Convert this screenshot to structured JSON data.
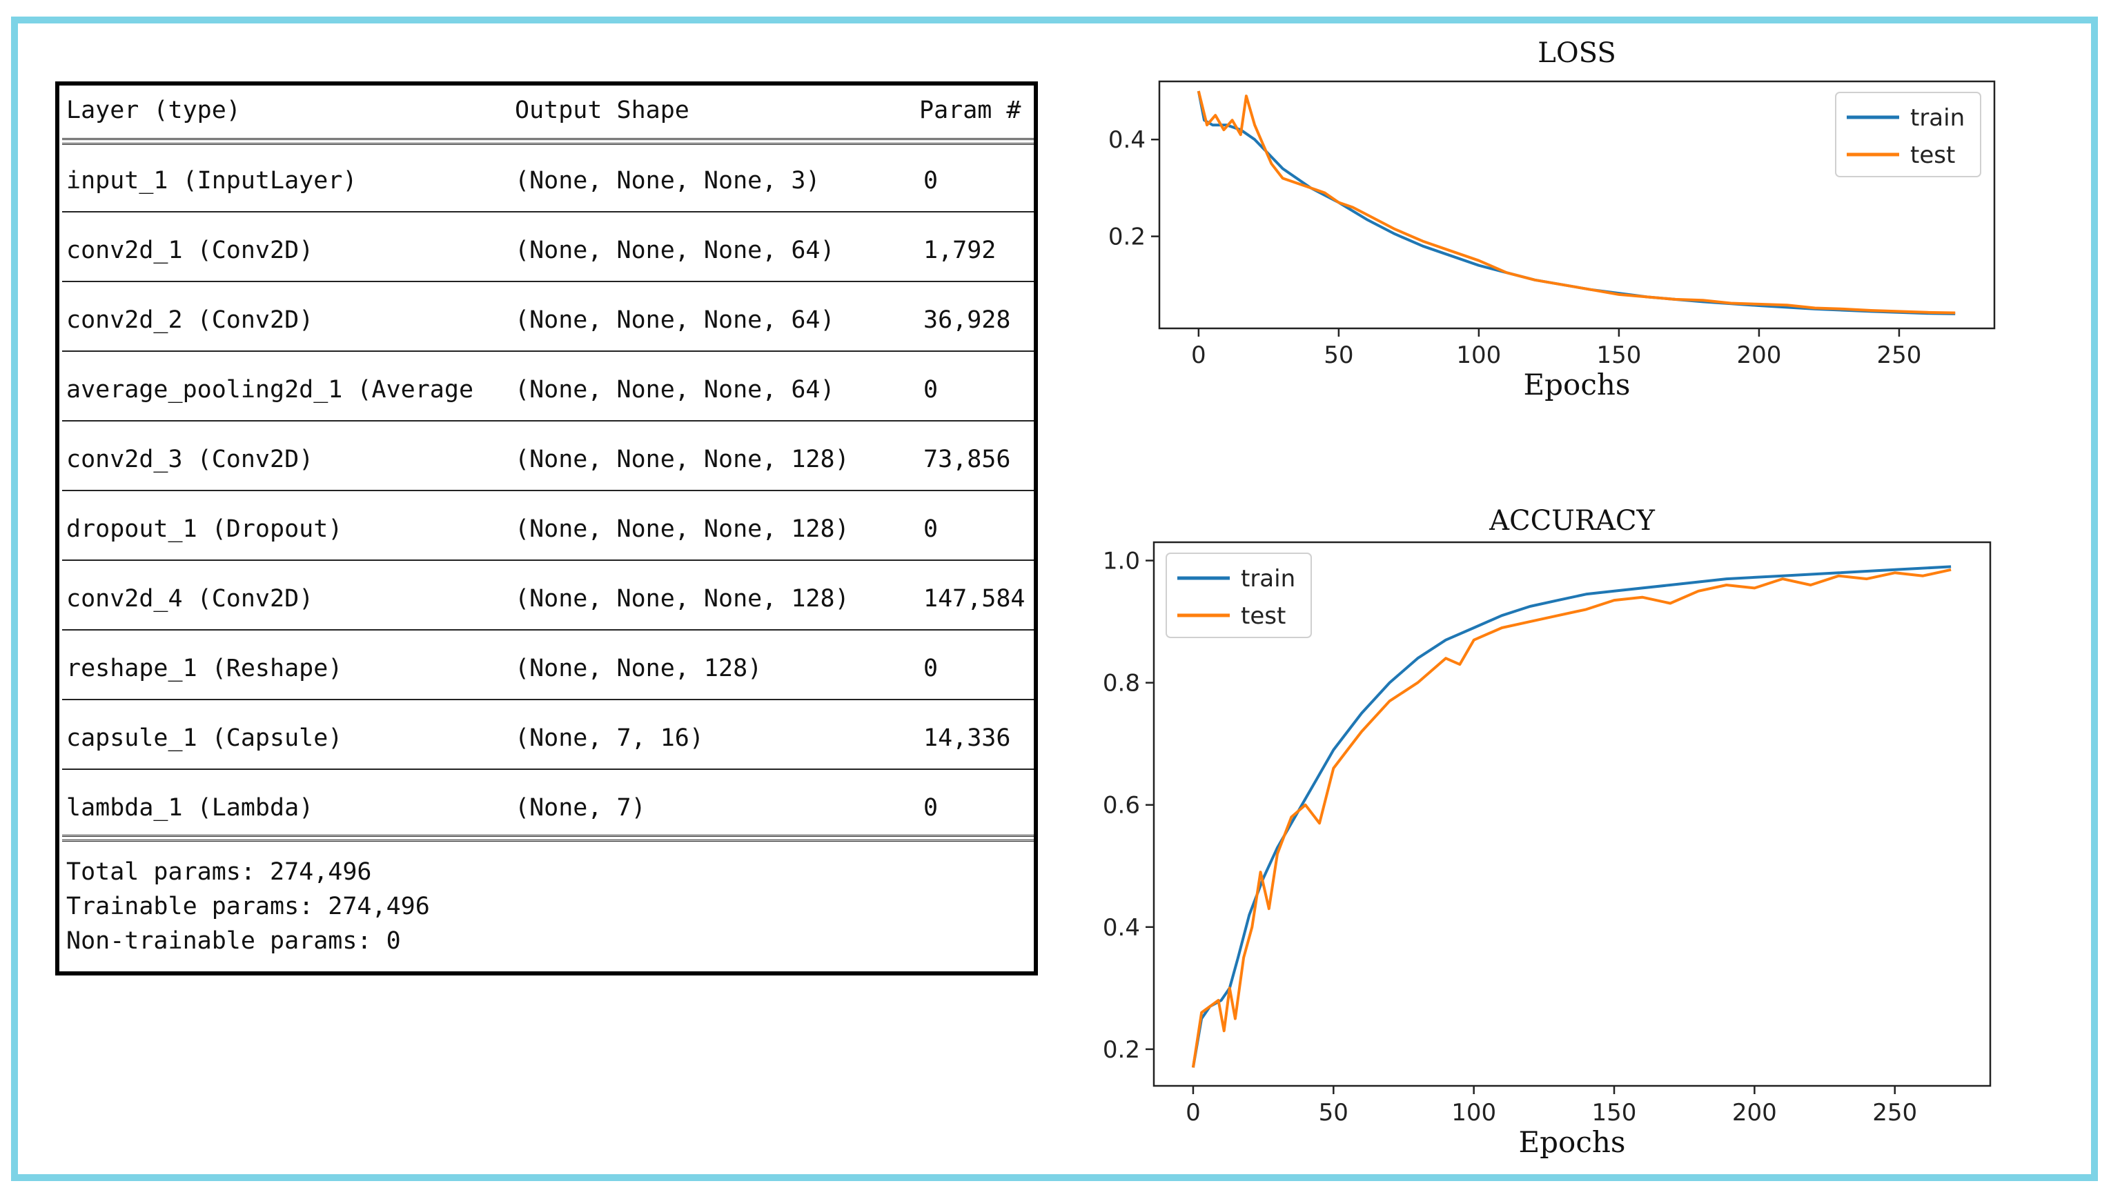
{
  "model_summary": {
    "headers": {
      "layer": "Layer (type)",
      "output": "Output Shape",
      "param": "Param #"
    },
    "rows": [
      {
        "layer": "input_1 (InputLayer)",
        "output": "(None, None, None, 3)",
        "param": "0"
      },
      {
        "layer": "conv2d_1 (Conv2D)",
        "output": "(None, None, None, 64)",
        "param": "1,792"
      },
      {
        "layer": "conv2d_2 (Conv2D)",
        "output": "(None, None, None, 64)",
        "param": "36,928"
      },
      {
        "layer": "average_pooling2d_1 (Average",
        "output": "(None, None, None, 64)",
        "param": "0"
      },
      {
        "layer": "conv2d_3 (Conv2D)",
        "output": "(None, None, None, 128)",
        "param": "73,856"
      },
      {
        "layer": "dropout_1 (Dropout)",
        "output": "(None, None, None, 128)",
        "param": "0"
      },
      {
        "layer": "conv2d_4 (Conv2D)",
        "output": "(None, None, None, 128)",
        "param": "147,584"
      },
      {
        "layer": "reshape_1 (Reshape)",
        "output": "(None, None, 128)",
        "param": "0"
      },
      {
        "layer": "capsule_1 (Capsule)",
        "output": "(None, 7, 16)",
        "param": "14,336"
      },
      {
        "layer": "lambda_1 (Lambda)",
        "output": "(None, 7)",
        "param": "0"
      }
    ],
    "totals": {
      "total": "Total params: 274,496",
      "trainable": "Trainable params: 274,496",
      "non_trainable": "Non-trainable params: 0"
    }
  },
  "chart_data": [
    {
      "type": "line",
      "title": "LOSS",
      "xlabel": "Epochs",
      "ylabel": "",
      "xlim": [
        -14,
        284
      ],
      "ylim": [
        0.01,
        0.52
      ],
      "xticks": [
        0,
        50,
        100,
        150,
        200,
        250
      ],
      "yticks": [
        0.2,
        0.4
      ],
      "legend": "top-right",
      "colors": {
        "train": "#1f77b4",
        "test": "#ff7f0e"
      },
      "series": [
        {
          "name": "train",
          "x": [
            0,
            2,
            5,
            10,
            15,
            20,
            25,
            30,
            35,
            40,
            45,
            50,
            60,
            70,
            80,
            90,
            100,
            120,
            140,
            160,
            180,
            200,
            220,
            240,
            260,
            270
          ],
          "values": [
            0.5,
            0.44,
            0.43,
            0.43,
            0.42,
            0.4,
            0.37,
            0.34,
            0.32,
            0.3,
            0.285,
            0.27,
            0.235,
            0.205,
            0.18,
            0.16,
            0.14,
            0.11,
            0.09,
            0.075,
            0.065,
            0.057,
            0.05,
            0.045,
            0.041,
            0.04
          ]
        },
        {
          "name": "test",
          "x": [
            0,
            3,
            6,
            9,
            12,
            15,
            17,
            20,
            23,
            26,
            30,
            35,
            40,
            45,
            50,
            55,
            60,
            70,
            80,
            90,
            100,
            110,
            120,
            130,
            140,
            150,
            160,
            170,
            180,
            190,
            200,
            210,
            220,
            230,
            240,
            250,
            260,
            270
          ],
          "values": [
            0.5,
            0.43,
            0.45,
            0.42,
            0.44,
            0.41,
            0.49,
            0.43,
            0.39,
            0.35,
            0.32,
            0.31,
            0.3,
            0.29,
            0.27,
            0.26,
            0.245,
            0.215,
            0.19,
            0.17,
            0.15,
            0.125,
            0.11,
            0.1,
            0.09,
            0.08,
            0.075,
            0.07,
            0.068,
            0.062,
            0.06,
            0.058,
            0.052,
            0.05,
            0.047,
            0.045,
            0.043,
            0.042
          ]
        }
      ]
    },
    {
      "type": "line",
      "title": "ACCURACY",
      "xlabel": "Epochs",
      "ylabel": "",
      "xlim": [
        -14,
        284
      ],
      "ylim": [
        0.14,
        1.03
      ],
      "xticks": [
        0,
        50,
        100,
        150,
        200,
        250
      ],
      "yticks": [
        0.2,
        0.4,
        0.6,
        0.8,
        1.0
      ],
      "legend": "top-left",
      "colors": {
        "train": "#1f77b4",
        "test": "#ff7f0e"
      },
      "series": [
        {
          "name": "train",
          "x": [
            0,
            3,
            6,
            10,
            13,
            16,
            20,
            25,
            30,
            35,
            40,
            45,
            50,
            60,
            70,
            80,
            90,
            100,
            110,
            120,
            130,
            140,
            150,
            170,
            190,
            210,
            230,
            250,
            270
          ],
          "values": [
            0.17,
            0.25,
            0.27,
            0.28,
            0.3,
            0.35,
            0.42,
            0.48,
            0.53,
            0.57,
            0.61,
            0.65,
            0.69,
            0.75,
            0.8,
            0.84,
            0.87,
            0.89,
            0.91,
            0.925,
            0.935,
            0.945,
            0.95,
            0.96,
            0.97,
            0.975,
            0.98,
            0.985,
            0.99
          ]
        },
        {
          "name": "test",
          "x": [
            0,
            3,
            6,
            9,
            11,
            13,
            15,
            18,
            21,
            24,
            27,
            30,
            35,
            40,
            45,
            50,
            55,
            60,
            70,
            80,
            90,
            95,
            100,
            110,
            120,
            130,
            140,
            150,
            160,
            170,
            180,
            190,
            200,
            210,
            220,
            230,
            240,
            250,
            260,
            270
          ],
          "values": [
            0.17,
            0.26,
            0.27,
            0.28,
            0.23,
            0.3,
            0.25,
            0.35,
            0.4,
            0.49,
            0.43,
            0.52,
            0.58,
            0.6,
            0.57,
            0.66,
            0.69,
            0.72,
            0.77,
            0.8,
            0.84,
            0.83,
            0.87,
            0.89,
            0.9,
            0.91,
            0.92,
            0.935,
            0.94,
            0.93,
            0.95,
            0.96,
            0.955,
            0.97,
            0.96,
            0.975,
            0.97,
            0.98,
            0.975,
            0.985
          ]
        }
      ]
    }
  ]
}
